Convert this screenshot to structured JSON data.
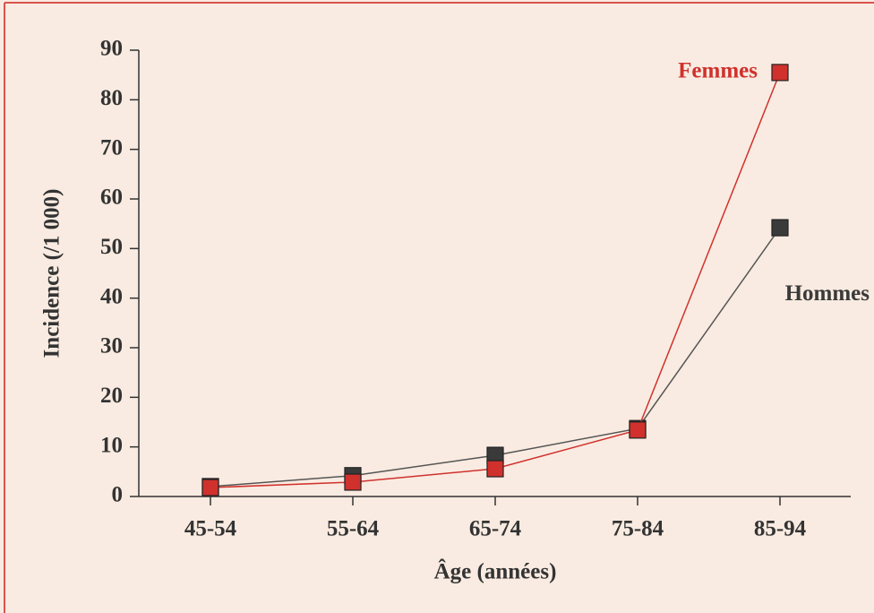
{
  "chart_data": {
    "type": "line",
    "x_label": "Âge (années)",
    "y_label": "Incidence (/1 000)",
    "categories": [
      "45-54",
      "55-64",
      "65-74",
      "75-84",
      "85-94"
    ],
    "series": [
      {
        "name": "Hommes",
        "color": "#3a3a3a",
        "line_color": "#555555",
        "values": [
          2,
          4.2,
          8.3,
          13.7,
          54.2
        ]
      },
      {
        "name": "Femmes",
        "color": "#d0312d",
        "line_color": "#d0312d",
        "values": [
          1.8,
          2.9,
          5.6,
          13.4,
          85.5
        ]
      }
    ],
    "ylim": [
      0,
      90
    ],
    "yticks": [
      0,
      10,
      20,
      30,
      40,
      50,
      60,
      70,
      80,
      90
    ],
    "grid": false
  }
}
